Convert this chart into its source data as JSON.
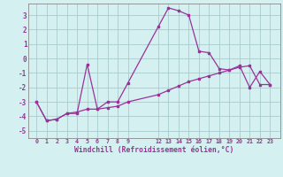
{
  "x": [
    0,
    1,
    2,
    3,
    4,
    5,
    6,
    7,
    8,
    9,
    12,
    13,
    14,
    15,
    16,
    17,
    18,
    19,
    20,
    21,
    22,
    23
  ],
  "y_line": [
    -3.0,
    -4.3,
    -4.2,
    -3.8,
    -3.8,
    -0.4,
    -3.5,
    -3.0,
    -3.0,
    -1.7,
    2.2,
    3.5,
    3.3,
    3.0,
    0.5,
    0.4,
    -0.7,
    -0.8,
    -0.5,
    -2.0,
    -0.9,
    -1.8
  ],
  "y_trend": [
    -3.0,
    -4.3,
    -4.2,
    -3.8,
    -3.7,
    -3.5,
    -3.5,
    -3.4,
    -3.3,
    -3.0,
    -2.5,
    -2.2,
    -1.9,
    -1.6,
    -1.4,
    -1.2,
    -1.0,
    -0.8,
    -0.6,
    -0.5,
    -1.8,
    -1.8
  ],
  "line_color": "#993399",
  "trend_color": "#993399",
  "bg_color": "#d4f0f0",
  "grid_color": "#aacccc",
  "axis_color": "#993399",
  "ylabel_values": [
    3,
    2,
    1,
    0,
    -1,
    -2,
    -3,
    -4,
    -5
  ],
  "xlabel": "Windchill (Refroidissement éolien,°C)",
  "ylim": [
    -5.5,
    3.8
  ],
  "xlim": [
    -0.8,
    24.0
  ],
  "xtick_positions": [
    0,
    1,
    2,
    3,
    4,
    5,
    6,
    7,
    8,
    9,
    12,
    13,
    14,
    15,
    16,
    17,
    18,
    19,
    20,
    21,
    22,
    23
  ],
  "xtick_labels": [
    "0",
    "1",
    "2",
    "3",
    "4",
    "5",
    "6",
    "7",
    "8",
    "9",
    "12",
    "13",
    "14",
    "15",
    "16",
    "17",
    "18",
    "19",
    "20",
    "21",
    "22",
    "23"
  ]
}
